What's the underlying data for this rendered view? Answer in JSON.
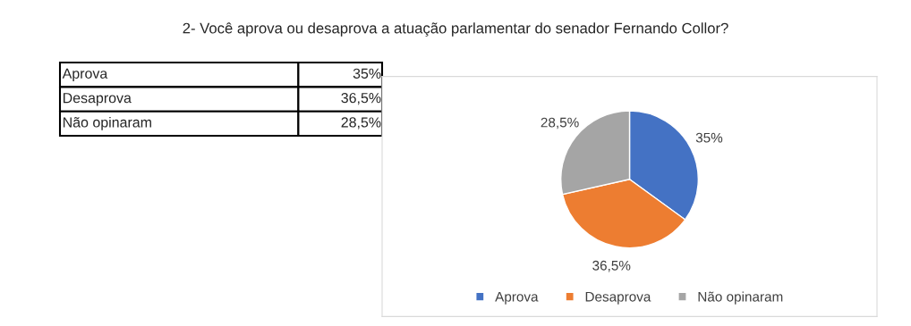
{
  "chart_data": {
    "type": "pie",
    "title": "2- Você aprova ou desaprova a atuação parlamentar do senador Fernando Collor?",
    "categories": [
      "Aprova",
      "Desaprova",
      "Não opinaram"
    ],
    "values": [
      35,
      36.5,
      28.5
    ],
    "colors": [
      "#4472c4",
      "#ed7d31",
      "#a5a5a5"
    ],
    "data_labels": true,
    "value_labels": [
      "35%",
      "36,5%",
      "28,5%"
    ],
    "legend": "bottom"
  }
}
